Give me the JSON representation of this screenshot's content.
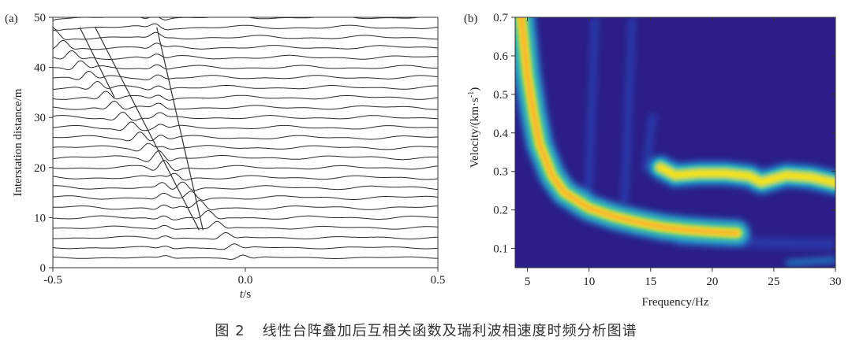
{
  "caption": {
    "figure_no": "图 2",
    "text": "线性台阵叠加后互相关函数及瑞利波相速度时频分析图谱"
  },
  "chart_data": [
    {
      "panel": "(a)",
      "type": "line",
      "xlabel_italic": "t",
      "xlabel_unit": "/s",
      "ylabel": "Interstation distance/m",
      "xlim": [
        -0.5,
        0.5
      ],
      "ylim": [
        0,
        50
      ],
      "xticks": [
        "-0.5",
        "0.0",
        "0.5"
      ],
      "yticks": [
        "0",
        "10",
        "20",
        "30",
        "40",
        "50"
      ],
      "trace_count": 25,
      "trace_spacing_m": 2,
      "trace_offsets_m": [
        2,
        4,
        6,
        8,
        10,
        12,
        14,
        16,
        18,
        20,
        22,
        24,
        26,
        28,
        30,
        32,
        34,
        36,
        38,
        40,
        42,
        44,
        46,
        48,
        50
      ],
      "moveout_lines": [
        {
          "points": [
            [
              -0.43,
              48
            ],
            [
              -0.34,
              34
            ]
          ]
        },
        {
          "points": [
            [
              -0.39,
              48
            ],
            [
              -0.12,
              7.5
            ]
          ]
        },
        {
          "points": [
            [
              -0.23,
              48
            ],
            [
              -0.11,
              7.5
            ]
          ]
        }
      ]
    },
    {
      "panel": "(b)",
      "type": "heatmap",
      "xlabel": "Frequency/Hz",
      "ylabel": "Velocity/(km·s",
      "ylabel_sup": "-1",
      "ylabel_end": ")",
      "xlim": [
        4,
        30
      ],
      "ylim": [
        0.05,
        0.7
      ],
      "xticks": [
        "5",
        "10",
        "15",
        "20",
        "25",
        "30"
      ],
      "yticks": [
        "0.1",
        "0.2",
        "0.3",
        "0.4",
        "0.5",
        "0.6",
        "0.7"
      ],
      "colormap": [
        "#2c1e8a",
        "#2b4ec0",
        "#1f9fd6",
        "#3fc7a4",
        "#b8d44a",
        "#f4e21c",
        "#f9a733"
      ],
      "dispersion_ridge": [
        {
          "f": 4.5,
          "v": 0.7
        },
        {
          "f": 5,
          "v": 0.55
        },
        {
          "f": 5.5,
          "v": 0.45
        },
        {
          "f": 6,
          "v": 0.37
        },
        {
          "f": 7,
          "v": 0.29
        },
        {
          "f": 8,
          "v": 0.245
        },
        {
          "f": 10,
          "v": 0.205
        },
        {
          "f": 12,
          "v": 0.183
        },
        {
          "f": 14,
          "v": 0.168
        },
        {
          "f": 16,
          "v": 0.155
        },
        {
          "f": 18,
          "v": 0.148
        },
        {
          "f": 20,
          "v": 0.143
        },
        {
          "f": 22,
          "v": 0.14
        }
      ],
      "high_mode": [
        {
          "f": 15.8,
          "v": 0.31
        },
        {
          "f": 17,
          "v": 0.29
        },
        {
          "f": 19,
          "v": 0.295
        },
        {
          "f": 21,
          "v": 0.295
        },
        {
          "f": 23,
          "v": 0.288
        },
        {
          "f": 24,
          "v": 0.272
        },
        {
          "f": 26,
          "v": 0.29
        },
        {
          "f": 28,
          "v": 0.285
        },
        {
          "f": 30,
          "v": 0.27
        }
      ]
    }
  ]
}
